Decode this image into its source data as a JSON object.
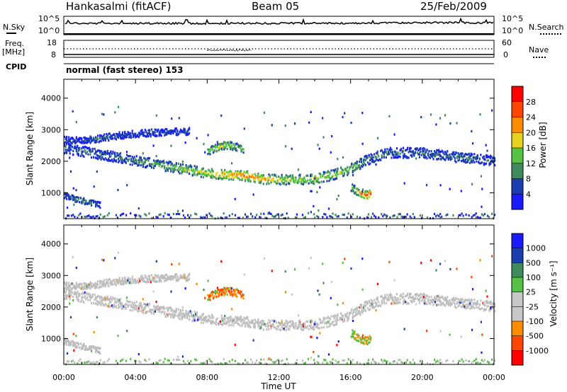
{
  "header": {
    "title": "Hankasalmi (fitACF)",
    "beam": "Beam 05",
    "date": "25/Feb/2009"
  },
  "noise_panel": {
    "left_label": "N.Sky",
    "left_ticks": [
      "10^5",
      "10^0"
    ],
    "right_label": "N.Search",
    "right_ticks": [
      "10^5",
      "10^0"
    ]
  },
  "freq_panel": {
    "left_label_1": "Freq.",
    "left_label_2": "[MHz]",
    "left_ticks": [
      "18",
      "8"
    ],
    "right_label": "Nave",
    "right_ticks": [
      "60",
      "0"
    ]
  },
  "cpid": {
    "label": "CPID",
    "mode": "normal (fast stereo) 153"
  },
  "colors": {
    "power_scale": [
      "#1a1aff",
      "#1a3db0",
      "#3e8a5c",
      "#55c243",
      "#e6d21c",
      "#ff8c00",
      "#ff4500",
      "#ff0000"
    ],
    "velocity_scale": [
      "#ff0000",
      "#ff4500",
      "#ff8c00",
      "#c8c8c8",
      "#c8c8c8",
      "#55c243",
      "#3e8a5c",
      "#1a3db0",
      "#1a1aff"
    ],
    "ground_scatter": "#bebebe"
  },
  "chart_data": [
    {
      "type": "heatmap",
      "name": "power",
      "xlabel": "Time UT",
      "ylabel": "Slant Range [km]",
      "xlim": [
        0,
        24
      ],
      "ylim": [
        180,
        4600
      ],
      "xticks": [
        "00:00",
        "04:00",
        "08:00",
        "12:00",
        "16:00",
        "20:00",
        "00:00"
      ],
      "yticks": [
        1000,
        2000,
        3000,
        4000
      ],
      "colorbar_label": "Power [dB]",
      "colorbar_ticks": [
        "4",
        "8",
        "12",
        "16",
        "20",
        "24",
        "28"
      ],
      "color_range": [
        0,
        32
      ],
      "features": [
        {
          "desc": "main scatter band",
          "time": [
            0,
            2,
            4,
            6,
            8,
            9,
            10,
            11,
            12,
            13,
            14,
            15,
            16,
            17,
            18,
            20,
            22,
            24
          ],
          "range": [
            2450,
            2250,
            2050,
            1850,
            1650,
            1620,
            1580,
            1480,
            1450,
            1450,
            1480,
            1600,
            1800,
            2100,
            2300,
            2300,
            2150,
            2050
          ],
          "power": [
            8,
            8,
            10,
            14,
            18,
            22,
            24,
            22,
            18,
            16,
            18,
            16,
            14,
            10,
            8,
            8,
            8,
            8
          ]
        },
        {
          "desc": "upper band",
          "time": [
            0,
            1,
            2,
            3,
            4,
            5,
            6,
            7
          ],
          "range": [
            2700,
            2680,
            2760,
            2850,
            2900,
            2940,
            2960,
            2980
          ],
          "power": [
            6,
            6,
            8,
            6,
            6,
            6,
            6,
            6
          ]
        },
        {
          "desc": "high-range patch",
          "time": [
            8,
            8.5,
            9,
            9.5,
            10
          ],
          "range": [
            2350,
            2450,
            2550,
            2500,
            2400
          ],
          "power": [
            14,
            18,
            18,
            16,
            12
          ]
        },
        {
          "desc": "near-range strong echo",
          "time": [
            16,
            16.4,
            16.8,
            17.1
          ],
          "range": [
            1200,
            1050,
            950,
            1000
          ],
          "power": [
            14,
            20,
            28,
            28
          ]
        },
        {
          "desc": "early near-range echo",
          "time": [
            0,
            0.5,
            1,
            1.5,
            2
          ],
          "range": [
            950,
            850,
            780,
            720,
            650
          ],
          "power": [
            8,
            10,
            12,
            10,
            8
          ]
        }
      ]
    },
    {
      "type": "heatmap",
      "name": "velocity",
      "xlabel": "Time UT",
      "ylabel": "Slant Range [km]",
      "xlim": [
        0,
        24
      ],
      "ylim": [
        180,
        4600
      ],
      "xticks": [
        "00:00",
        "04:00",
        "08:00",
        "12:00",
        "16:00",
        "20:00",
        "00:00"
      ],
      "yticks": [
        1000,
        2000,
        3000,
        4000
      ],
      "colorbar_label": "Velocity [m s⁻¹]",
      "colorbar_ticks": [
        "1000",
        "500",
        "100",
        "25",
        "-25",
        "-100",
        "-500",
        "-1000"
      ],
      "features": [
        {
          "desc": "ground scatter band",
          "time": [
            0,
            4,
            8,
            12,
            16,
            20,
            24
          ],
          "range": [
            2450,
            2050,
            1650,
            1450,
            1800,
            2300,
            2050
          ],
          "velocity": 0
        },
        {
          "desc": "negative-velocity patch",
          "time": [
            8,
            9,
            10
          ],
          "range": [
            2450,
            2550,
            2450
          ],
          "velocity": -500
        },
        {
          "desc": "near-range echo",
          "time": [
            16,
            16.5,
            17
          ],
          "range": [
            1200,
            1050,
            950
          ],
          "velocity": -300
        }
      ]
    }
  ]
}
